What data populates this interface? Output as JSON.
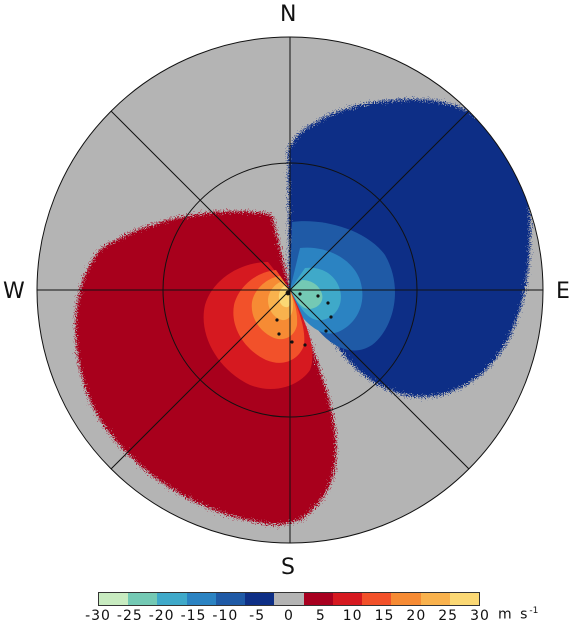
{
  "compass": {
    "north": "N",
    "south": "S",
    "west": "W",
    "east": "E"
  },
  "colorbar": {
    "ticks": [
      "-30",
      "-25",
      "-20",
      "-15",
      "-10",
      "-5",
      "0",
      "5",
      "10",
      "15",
      "20",
      "25",
      "30"
    ],
    "unit": "m s",
    "unit_exponent": "-1",
    "colors": [
      "#c8ebc0",
      "#74c9b4",
      "#3fa9c9",
      "#2b83c2",
      "#1f5aa6",
      "#0e2f86",
      "#b4b4b4",
      "#a8001f",
      "#d61920",
      "#f2512a",
      "#f68b34",
      "#f9b24d",
      "#fbd874"
    ]
  },
  "field": {
    "background_color": "#b4b4b4",
    "range_rings": 2,
    "radials": 8
  }
}
